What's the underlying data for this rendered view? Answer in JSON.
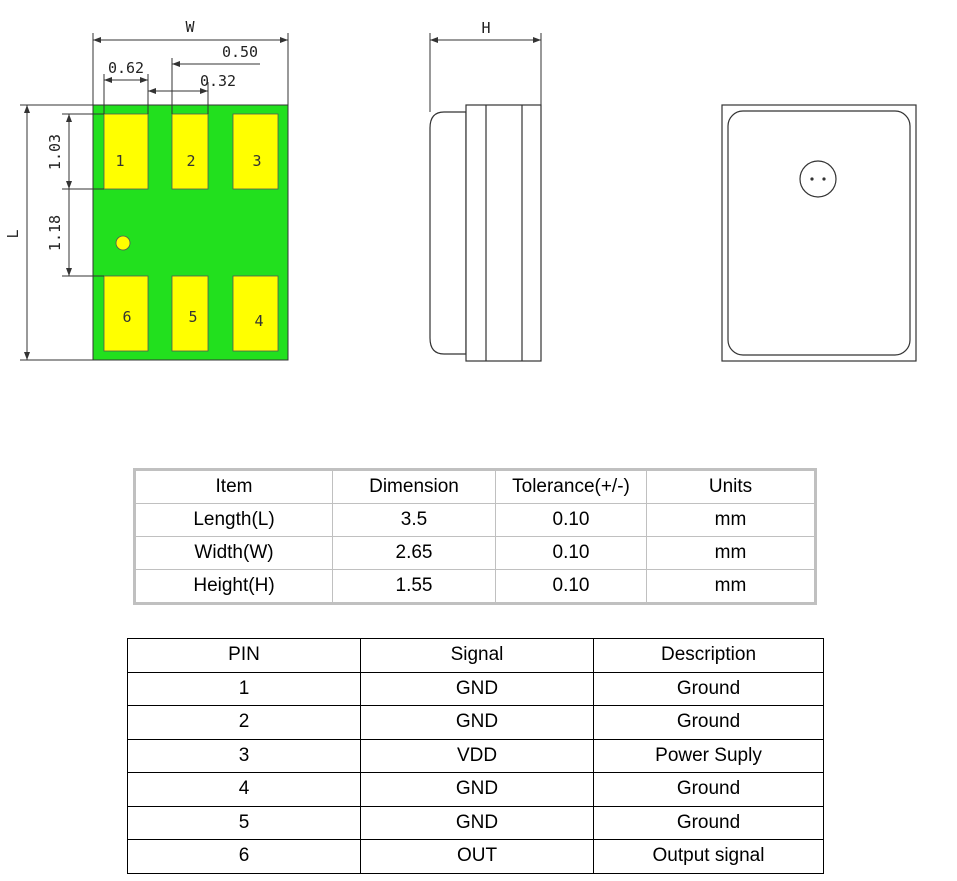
{
  "diagram": {
    "dimension_labels": {
      "width": "W",
      "height": "H",
      "length": "L",
      "pad_width": "0.62",
      "pitch": "0.50",
      "gap": "0.32",
      "pad_length": "1.03",
      "row_gap": "1.18"
    },
    "pads": [
      "1",
      "2",
      "3",
      "6",
      "5",
      "4"
    ],
    "colors": {
      "board": "#22e01e",
      "pad": "#ffff00",
      "outline": "#000000"
    }
  },
  "dimensions_table": {
    "headers": [
      "Item",
      "Dimension",
      "Tolerance(+/-)",
      "Units"
    ],
    "rows": [
      [
        "Length(L)",
        "3.5",
        "0.10",
        "mm"
      ],
      [
        "Width(W)",
        "2.65",
        "0.10",
        "mm"
      ],
      [
        "Height(H)",
        "1.55",
        "0.10",
        "mm"
      ]
    ]
  },
  "pin_table": {
    "headers": [
      "PIN",
      "Signal",
      "Description"
    ],
    "rows": [
      [
        "1",
        "GND",
        "Ground"
      ],
      [
        "2",
        "GND",
        "Ground"
      ],
      [
        "3",
        "VDD",
        "Power Suply"
      ],
      [
        "4",
        "GND",
        "Ground"
      ],
      [
        "5",
        "GND",
        "Ground"
      ],
      [
        "6",
        "OUT",
        "Output signal"
      ]
    ]
  }
}
